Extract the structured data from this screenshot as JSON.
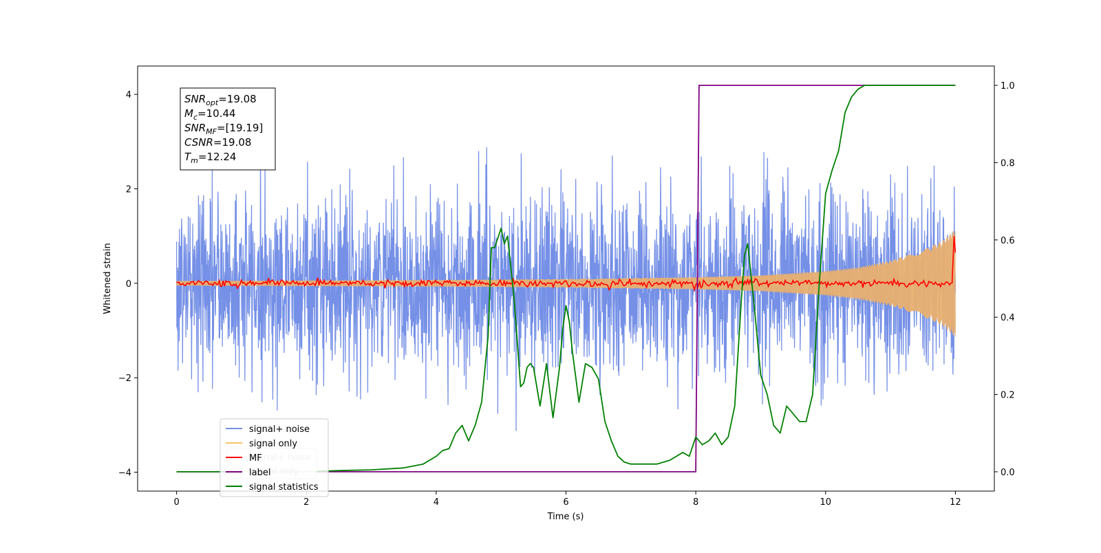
{
  "chart_data": {
    "type": "line",
    "xlabel": "Time (s)",
    "ylabel": "Whitened strain",
    "xlim": [
      -0.6,
      12.6
    ],
    "ylim": [
      -4.4,
      4.6
    ],
    "y2lim": [
      -0.05,
      1.05
    ],
    "xticks": [
      0,
      2,
      4,
      6,
      8,
      10,
      12
    ],
    "yticks": [
      -4,
      -2,
      0,
      2,
      4
    ],
    "y2ticks": [
      0.0,
      0.2,
      0.4,
      0.6,
      0.8,
      1.0
    ],
    "xtick_labels": [
      "0",
      "2",
      "4",
      "6",
      "8",
      "10",
      "12"
    ],
    "ytick_labels": [
      "−4",
      "−2",
      "0",
      "2",
      "4"
    ],
    "y2tick_labels": [
      "0.0",
      "0.2",
      "0.4",
      "0.6",
      "0.8",
      "1.0"
    ],
    "grid": false,
    "legend_position": "lower-left",
    "legend": [
      {
        "label": "signal+ noise",
        "color": "#7590e6"
      },
      {
        "label": "signal only",
        "color": "#f5c36a"
      },
      {
        "label": "MF",
        "color": "#ff0000"
      },
      {
        "label": "label",
        "color": "#800080"
      },
      {
        "label": "signal statistics",
        "color": "#008000"
      }
    ],
    "legend_ghost": [
      {
        "label": "signal+ noise"
      },
      {
        "label": "signal only"
      }
    ],
    "annotation": {
      "lines": [
        {
          "base": "SNR",
          "sub": "opt",
          "rest": "=19.08"
        },
        {
          "base": "M",
          "sub": "c",
          "rest": "=10.44"
        },
        {
          "base": "SNR",
          "sub": "MF",
          "rest": "=[19.19]"
        },
        {
          "base": "CSNR",
          "sub": "",
          "rest": "=19.08"
        },
        {
          "base": "T",
          "sub": "m",
          "rest": "=12.24"
        }
      ]
    },
    "series": [
      {
        "name": "signal+ noise",
        "axis": "left",
        "style": "noise",
        "color": "#7590e6",
        "x_range": [
          0,
          12
        ],
        "amplitude_std": 0.95,
        "approx_range": [
          -4.0,
          3.4
        ]
      },
      {
        "name": "signal only",
        "axis": "left",
        "style": "chirp-envelope",
        "color": "#e8b070",
        "x_range": [
          0,
          12
        ],
        "envelope": {
          "x": [
            0,
            2,
            4,
            6,
            7,
            8,
            9,
            10,
            10.5,
            11,
            11.5,
            11.8,
            12
          ],
          "y": [
            0.05,
            0.06,
            0.07,
            0.09,
            0.11,
            0.13,
            0.17,
            0.26,
            0.34,
            0.48,
            0.7,
            0.9,
            1.15
          ]
        }
      },
      {
        "name": "MF",
        "axis": "left",
        "style": "noise",
        "color": "#ff0000",
        "x_range": [
          0,
          11.95
        ],
        "amplitude_std": 0.035,
        "tail": {
          "x": [
            11.95,
            11.98,
            12.0
          ],
          "y": [
            0.05,
            1.0,
            0.65
          ]
        }
      },
      {
        "name": "label",
        "axis": "right",
        "color": "#800080",
        "x": [
          0,
          8.0,
          8.05,
          12.0
        ],
        "y": [
          0.0,
          0.0,
          1.0,
          1.0
        ]
      },
      {
        "name": "signal statistics",
        "axis": "right",
        "color": "#008000",
        "x": [
          0,
          0.5,
          1,
          1.5,
          2,
          2.5,
          3,
          3.5,
          3.8,
          4.0,
          4.1,
          4.2,
          4.3,
          4.4,
          4.5,
          4.6,
          4.7,
          4.8,
          4.85,
          4.9,
          5.0,
          5.05,
          5.1,
          5.2,
          5.3,
          5.35,
          5.4,
          5.45,
          5.5,
          5.6,
          5.7,
          5.8,
          5.9,
          5.95,
          6.0,
          6.05,
          6.1,
          6.2,
          6.3,
          6.4,
          6.5,
          6.6,
          6.7,
          6.8,
          6.9,
          7.0,
          7.2,
          7.4,
          7.6,
          7.8,
          7.9,
          8.0,
          8.1,
          8.2,
          8.3,
          8.4,
          8.5,
          8.6,
          8.7,
          8.75,
          8.8,
          8.9,
          9.0,
          9.1,
          9.2,
          9.3,
          9.4,
          9.5,
          9.6,
          9.7,
          9.8,
          9.9,
          10.0,
          10.1,
          10.2,
          10.3,
          10.4,
          10.5,
          10.6,
          10.8,
          11.0,
          11.5,
          12.0
        ],
        "y": [
          0.0,
          0.0,
          0.0,
          0.0,
          0.0,
          0.003,
          0.005,
          0.01,
          0.02,
          0.04,
          0.055,
          0.06,
          0.1,
          0.12,
          0.08,
          0.12,
          0.18,
          0.35,
          0.58,
          0.58,
          0.63,
          0.59,
          0.61,
          0.45,
          0.22,
          0.23,
          0.27,
          0.28,
          0.27,
          0.17,
          0.28,
          0.14,
          0.27,
          0.37,
          0.43,
          0.39,
          0.31,
          0.18,
          0.28,
          0.27,
          0.24,
          0.13,
          0.08,
          0.04,
          0.025,
          0.02,
          0.02,
          0.02,
          0.03,
          0.05,
          0.04,
          0.09,
          0.07,
          0.08,
          0.1,
          0.07,
          0.09,
          0.17,
          0.44,
          0.56,
          0.59,
          0.43,
          0.25,
          0.2,
          0.12,
          0.1,
          0.17,
          0.15,
          0.13,
          0.13,
          0.2,
          0.48,
          0.72,
          0.78,
          0.83,
          0.93,
          0.97,
          0.99,
          1.0,
          1.0,
          1.0,
          1.0,
          1.0
        ]
      }
    ]
  }
}
